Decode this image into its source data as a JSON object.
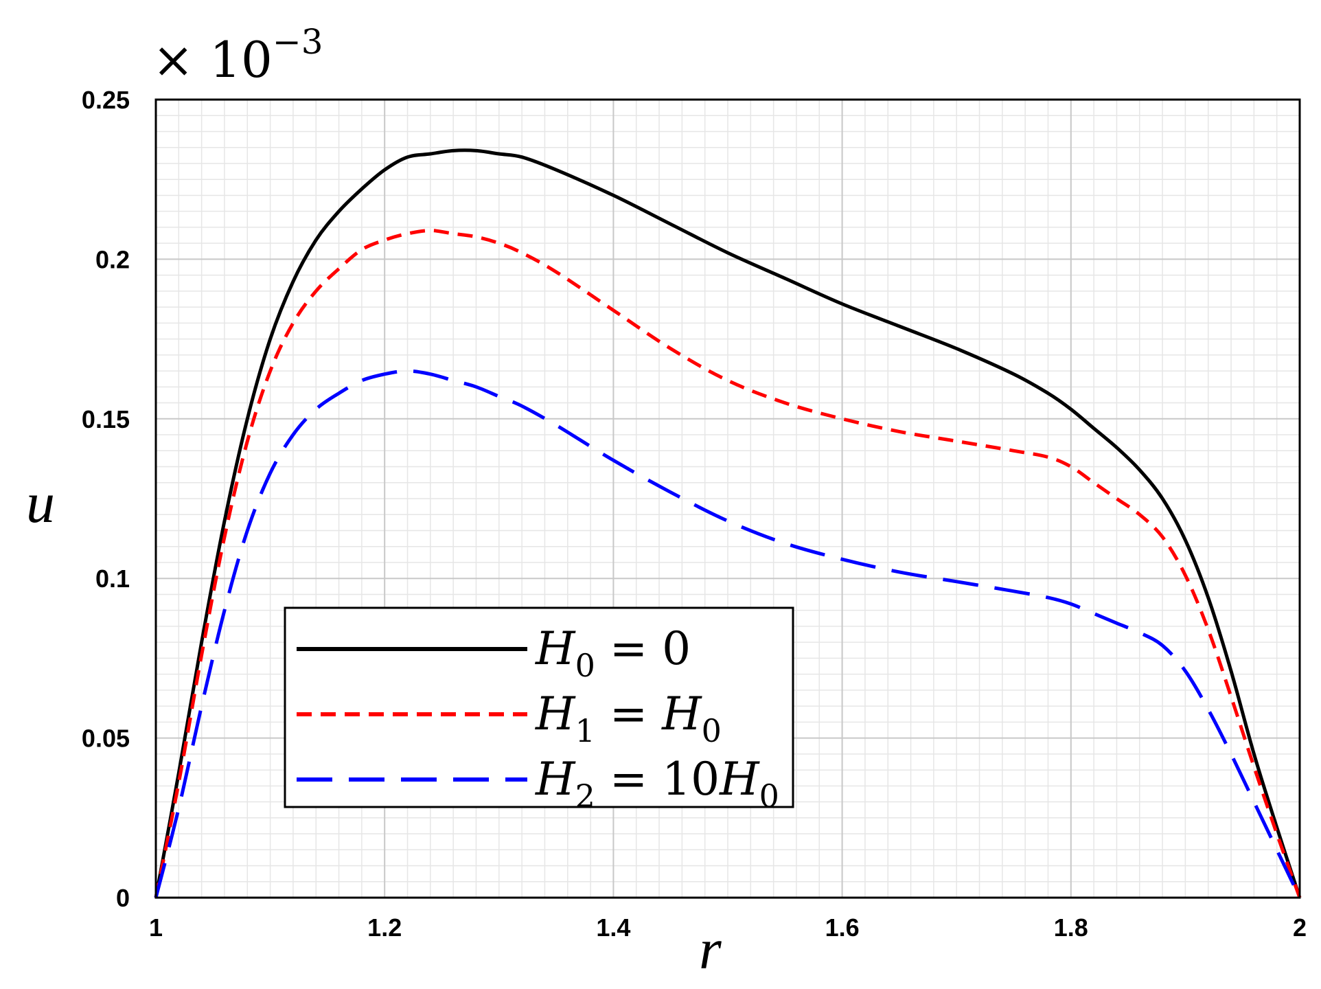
{
  "chart_data": {
    "type": "line",
    "title": "",
    "xlabel": "r",
    "ylabel": "u",
    "y_scale_multiplier": [
      "× 10",
      "−3"
    ],
    "xlim": [
      1,
      2
    ],
    "ylim": [
      0,
      0.25
    ],
    "x_ticks": [
      1,
      1.2,
      1.4,
      1.6,
      1.8,
      2
    ],
    "x_tick_labels": [
      "1",
      "1.2",
      "1.4",
      "1.6",
      "1.8",
      "2"
    ],
    "y_ticks": [
      0,
      0.05,
      0.1,
      0.15,
      0.2,
      0.25
    ],
    "y_tick_labels": [
      "0",
      "0.05",
      "0.1",
      "0.15",
      "0.2",
      "0.25"
    ],
    "grid": true,
    "legend_position": "lower-left",
    "series": [
      {
        "name": "H_0 = 0",
        "legend_label": {
          "symbol": "H",
          "subscript": "0",
          "rest": " = 0",
          "rest_symbol": "",
          "rest_subscript": ""
        },
        "color": "#000000",
        "style": "solid",
        "x": [
          1.0,
          1.02,
          1.04,
          1.06,
          1.08,
          1.1,
          1.12,
          1.14,
          1.16,
          1.18,
          1.2,
          1.22,
          1.24,
          1.26,
          1.28,
          1.3,
          1.32,
          1.35,
          1.4,
          1.45,
          1.5,
          1.55,
          1.6,
          1.65,
          1.7,
          1.75,
          1.78,
          1.8,
          1.82,
          1.84,
          1.86,
          1.88,
          1.9,
          1.92,
          1.94,
          1.96,
          1.98,
          2.0
        ],
        "y": [
          0.0,
          0.039,
          0.08,
          0.118,
          0.15,
          0.175,
          0.193,
          0.206,
          0.215,
          0.222,
          0.228,
          0.232,
          0.233,
          0.234,
          0.234,
          0.233,
          0.232,
          0.228,
          0.22,
          0.211,
          0.202,
          0.194,
          0.186,
          0.179,
          0.172,
          0.164,
          0.158,
          0.153,
          0.147,
          0.141,
          0.134,
          0.125,
          0.112,
          0.094,
          0.071,
          0.045,
          0.022,
          0.0
        ]
      },
      {
        "name": "H_1 = H_0",
        "legend_label": {
          "symbol": "H",
          "subscript": "1",
          "rest": " = ",
          "rest_symbol": "H",
          "rest_subscript": "0"
        },
        "color": "#ff0000",
        "style": "short-dash",
        "x": [
          1.0,
          1.02,
          1.04,
          1.06,
          1.08,
          1.1,
          1.12,
          1.14,
          1.16,
          1.18,
          1.2,
          1.22,
          1.24,
          1.26,
          1.28,
          1.3,
          1.32,
          1.35,
          1.4,
          1.45,
          1.5,
          1.55,
          1.6,
          1.65,
          1.7,
          1.75,
          1.78,
          1.8,
          1.82,
          1.84,
          1.86,
          1.88,
          1.9,
          1.92,
          1.94,
          1.96,
          1.98,
          2.0
        ],
        "y": [
          0.0,
          0.036,
          0.076,
          0.113,
          0.143,
          0.165,
          0.18,
          0.19,
          0.197,
          0.203,
          0.206,
          0.208,
          0.209,
          0.208,
          0.207,
          0.205,
          0.202,
          0.196,
          0.184,
          0.172,
          0.162,
          0.155,
          0.15,
          0.146,
          0.143,
          0.14,
          0.138,
          0.135,
          0.13,
          0.125,
          0.12,
          0.113,
          0.101,
          0.084,
          0.063,
          0.041,
          0.02,
          0.0
        ]
      },
      {
        "name": "H_2 = 10H_0",
        "legend_label": {
          "symbol": "H",
          "subscript": "2",
          "rest": " = 10",
          "rest_symbol": "H",
          "rest_subscript": "0"
        },
        "color": "#0000ff",
        "style": "long-dash",
        "x": [
          1.0,
          1.02,
          1.04,
          1.06,
          1.08,
          1.1,
          1.12,
          1.14,
          1.16,
          1.18,
          1.2,
          1.22,
          1.24,
          1.26,
          1.28,
          1.3,
          1.32,
          1.35,
          1.4,
          1.45,
          1.5,
          1.55,
          1.6,
          1.65,
          1.7,
          1.75,
          1.78,
          1.8,
          1.82,
          1.84,
          1.86,
          1.88,
          1.9,
          1.92,
          1.94,
          1.96,
          1.98,
          2.0
        ],
        "y": [
          0.0,
          0.028,
          0.06,
          0.09,
          0.115,
          0.133,
          0.145,
          0.153,
          0.158,
          0.162,
          0.164,
          0.165,
          0.164,
          0.162,
          0.16,
          0.157,
          0.154,
          0.148,
          0.137,
          0.127,
          0.118,
          0.111,
          0.106,
          0.102,
          0.099,
          0.096,
          0.094,
          0.092,
          0.089,
          0.086,
          0.083,
          0.079,
          0.071,
          0.059,
          0.045,
          0.03,
          0.015,
          0.0
        ]
      }
    ]
  }
}
